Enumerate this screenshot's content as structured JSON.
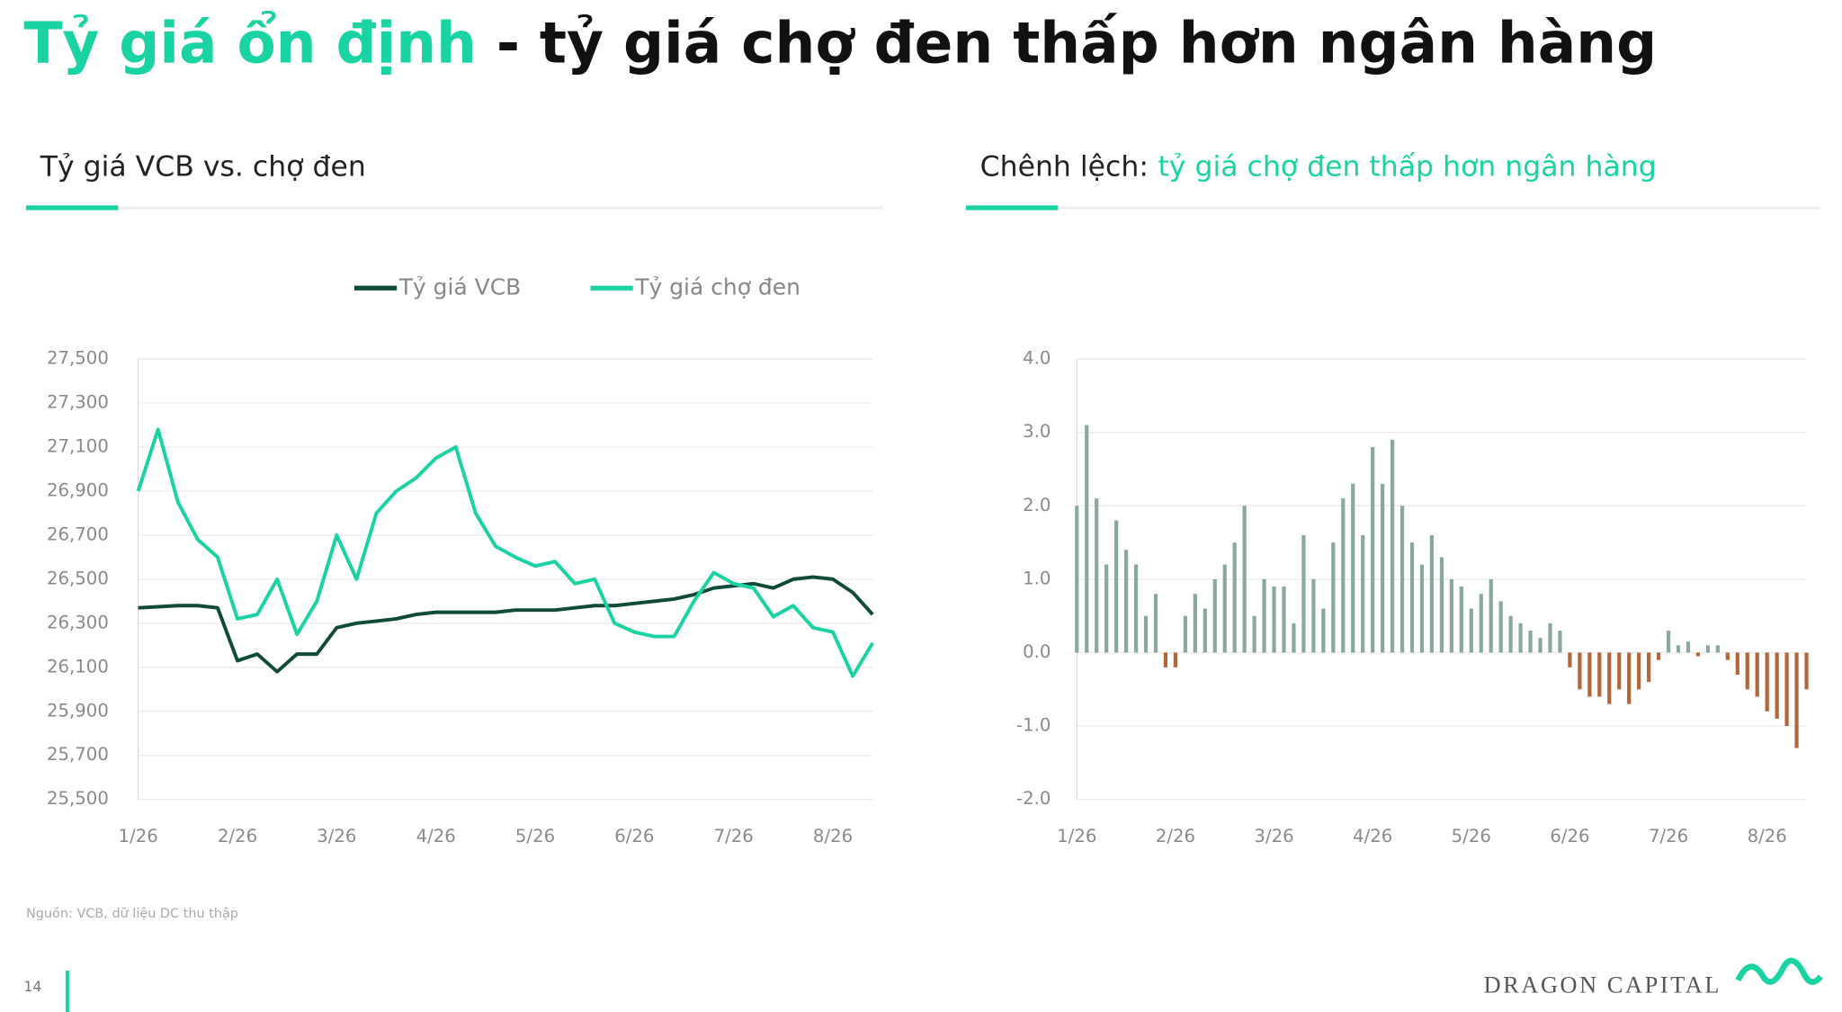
{
  "slide": {
    "title_highlight": "Tỷ giá ổn định",
    "title_rest": " - tỷ giá chợ đen thấp hơn ngân hàng",
    "source": "Nguồn: VCB, dữ liệu DC thu thập",
    "page": "14",
    "logo": "DRAGON CAPITAL"
  },
  "chart_data": [
    {
      "type": "line",
      "title": "Tỷ giá VCB vs. chợ đen",
      "grid": true,
      "legend": "top",
      "categories": [
        "1/26",
        null,
        null,
        null,
        null,
        "2/26",
        null,
        null,
        null,
        null,
        "3/26",
        null,
        null,
        null,
        null,
        "4/26",
        null,
        null,
        null,
        null,
        "5/26",
        null,
        null,
        null,
        null,
        "6/26",
        null,
        null,
        null,
        null,
        "7/26",
        null,
        null,
        null,
        null,
        "8/26",
        null,
        null
      ],
      "series": [
        {
          "name": "Tỷ giá VCB",
          "color": "#0f4a3a",
          "values": [
            26370,
            26375,
            26380,
            26380,
            26370,
            26130,
            26160,
            26080,
            26160,
            26160,
            26280,
            26300,
            26310,
            26320,
            26340,
            26350,
            26350,
            26350,
            26350,
            26360,
            26360,
            26360,
            26370,
            26380,
            26380,
            26390,
            26400,
            26410,
            26430,
            26460,
            26470,
            26480,
            26460,
            26500,
            26510,
            26500,
            26440,
            26340
          ]
        },
        {
          "name": "Tỷ giá chợ đen",
          "color": "#19d3a2",
          "values": [
            26900,
            27180,
            26850,
            26680,
            26600,
            26320,
            26340,
            26500,
            26250,
            26400,
            26700,
            26500,
            26800,
            26900,
            26960,
            27050,
            27100,
            26800,
            26650,
            26600,
            26560,
            26580,
            26480,
            26500,
            26300,
            26260,
            26240,
            26240,
            26400,
            26530,
            26480,
            26460,
            26330,
            26380,
            26280,
            26260,
            26060,
            26210
          ]
        }
      ],
      "ylim": [
        25500,
        27500
      ],
      "yticks": [
        {
          "value": 25500,
          "label": "25,500"
        },
        {
          "value": 25700,
          "label": "25,700"
        },
        {
          "value": 25900,
          "label": "25,900"
        },
        {
          "value": 26100,
          "label": "26,100"
        },
        {
          "value": 26300,
          "label": "26,300"
        },
        {
          "value": 26500,
          "label": "26,500"
        },
        {
          "value": 26700,
          "label": "26,700"
        },
        {
          "value": 26900,
          "label": "26,900"
        },
        {
          "value": 27100,
          "label": "27,100"
        },
        {
          "value": 27300,
          "label": "27,300"
        },
        {
          "value": 27500,
          "label": "27,500"
        }
      ]
    },
    {
      "type": "bar",
      "title": "Chênh lệch:",
      "subtitle": "tỷ giá chợ đen thấp hơn ngân hàng",
      "grid": true,
      "categories": [
        "1/26",
        null,
        null,
        null,
        null,
        null,
        null,
        null,
        null,
        null,
        "2/26",
        null,
        null,
        null,
        null,
        null,
        null,
        null,
        null,
        null,
        "3/26",
        null,
        null,
        null,
        null,
        null,
        null,
        null,
        null,
        null,
        "4/26",
        null,
        null,
        null,
        null,
        null,
        null,
        null,
        null,
        null,
        "5/26",
        null,
        null,
        null,
        null,
        null,
        null,
        null,
        null,
        null,
        "6/26",
        null,
        null,
        null,
        null,
        null,
        null,
        null,
        null,
        null,
        "7/26",
        null,
        null,
        null,
        null,
        null,
        null,
        null,
        null,
        null,
        "8/26",
        null,
        null,
        null,
        null
      ],
      "color": "#8aa89c",
      "negative_color": "#b5653a",
      "values": [
        2.0,
        3.1,
        2.1,
        1.2,
        1.8,
        1.4,
        1.2,
        0.5,
        0.8,
        -0.2,
        -0.2,
        0.5,
        0.8,
        0.6,
        1.0,
        1.2,
        1.5,
        2.0,
        0.5,
        1.0,
        0.9,
        0.9,
        0.4,
        1.6,
        1.0,
        0.6,
        1.5,
        2.1,
        2.3,
        1.6,
        2.8,
        2.3,
        2.9,
        2.0,
        1.5,
        1.2,
        1.6,
        1.3,
        1.0,
        0.9,
        0.6,
        0.8,
        1.0,
        0.7,
        0.5,
        0.4,
        0.3,
        0.2,
        0.4,
        0.3,
        -0.2,
        -0.5,
        -0.6,
        -0.6,
        -0.7,
        -0.5,
        -0.7,
        -0.5,
        -0.4,
        -0.1,
        0.3,
        0.1,
        0.15,
        -0.05,
        0.1,
        0.1,
        -0.1,
        -0.3,
        -0.5,
        -0.6,
        -0.8,
        -0.9,
        -1.0,
        -1.3,
        -0.5
      ],
      "ylim": [
        -2,
        4
      ],
      "yticks": [
        {
          "value": -2,
          "label": "-2.0"
        },
        {
          "value": -1,
          "label": "-1.0"
        },
        {
          "value": 0,
          "label": "0.0"
        },
        {
          "value": 1,
          "label": "1.0"
        },
        {
          "value": 2,
          "label": "2.0"
        },
        {
          "value": 3,
          "label": "3.0"
        },
        {
          "value": 4,
          "label": "4.0"
        }
      ]
    }
  ]
}
